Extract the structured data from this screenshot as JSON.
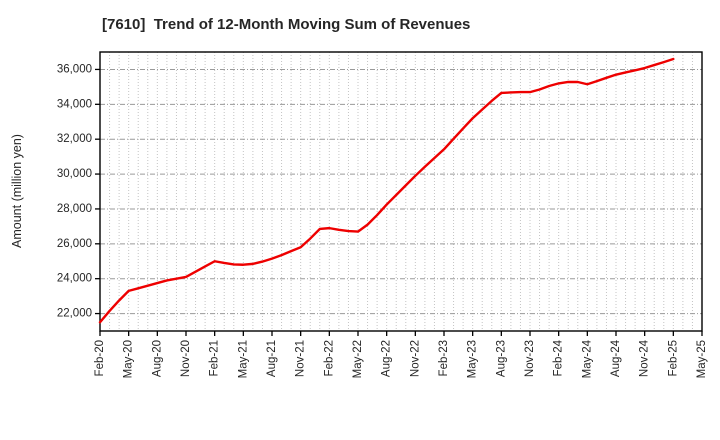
{
  "chart_data": {
    "type": "line",
    "title": "[7610]  Trend of 12-Month Moving Sum of Revenues",
    "ylabel": "Amount (million yen)",
    "xlabel": "",
    "legend": "none",
    "grid": {
      "vertical": "monthly-dotted",
      "horizontal": "major-dashdot"
    },
    "x_tick_labels": [
      "Feb-20",
      "May-20",
      "Aug-20",
      "Nov-20",
      "Feb-21",
      "May-21",
      "Aug-21",
      "Nov-21",
      "Feb-22",
      "May-22",
      "Aug-22",
      "Nov-22",
      "Feb-23",
      "May-23",
      "Aug-23",
      "Nov-23",
      "Feb-24",
      "May-24",
      "Aug-24",
      "Nov-24",
      "Feb-25",
      "May-25"
    ],
    "x_tick_step_months": 3,
    "x_total_months": 63,
    "y_ticks": [
      22000,
      24000,
      26000,
      28000,
      30000,
      32000,
      34000,
      36000
    ],
    "ylim": [
      21000,
      37000
    ],
    "series": [
      {
        "name": "12-Month Moving Sum of Revenues",
        "color": "#ee0000",
        "start_month_label": "Feb-20",
        "end_month_label": "Feb-25",
        "months": [
          "Feb-20",
          "Mar-20",
          "Apr-20",
          "May-20",
          "Jun-20",
          "Jul-20",
          "Aug-20",
          "Sep-20",
          "Oct-20",
          "Nov-20",
          "Dec-20",
          "Jan-21",
          "Feb-21",
          "Mar-21",
          "Apr-21",
          "May-21",
          "Jun-21",
          "Jul-21",
          "Aug-21",
          "Sep-21",
          "Oct-21",
          "Nov-21",
          "Dec-21",
          "Jan-22",
          "Feb-22",
          "Mar-22",
          "Apr-22",
          "May-22",
          "Jun-22",
          "Jul-22",
          "Aug-22",
          "Sep-22",
          "Oct-22",
          "Nov-22",
          "Dec-22",
          "Jan-23",
          "Feb-23",
          "Mar-23",
          "Apr-23",
          "May-23",
          "Jun-23",
          "Jul-23",
          "Aug-23",
          "Sep-23",
          "Oct-23",
          "Nov-23",
          "Dec-23",
          "Jan-24",
          "Feb-24",
          "Mar-24",
          "Apr-24",
          "May-24",
          "Jun-24",
          "Jul-24",
          "Aug-24",
          "Sep-24",
          "Oct-24",
          "Nov-24",
          "Dec-24",
          "Jan-25",
          "Feb-25"
        ],
        "values": [
          21500,
          22150,
          22750,
          23300,
          23450,
          23600,
          23750,
          23900,
          24000,
          24100,
          24400,
          24700,
          25000,
          24900,
          24820,
          24800,
          24850,
          24980,
          25150,
          25350,
          25580,
          25800,
          26300,
          26850,
          26900,
          26800,
          26730,
          26700,
          27100,
          27650,
          28250,
          28800,
          29350,
          29900,
          30420,
          30920,
          31420,
          32020,
          32620,
          33200,
          33700,
          34200,
          34650,
          34680,
          34700,
          34700,
          34850,
          35050,
          35200,
          35280,
          35280,
          35150,
          35330,
          35520,
          35700,
          35830,
          35950,
          36080,
          36250,
          36420,
          36600
        ]
      }
    ],
    "colors": {
      "line": "#ee0000",
      "axis_border": "#000000",
      "grid_vertical": "#c4c4c4",
      "grid_horizontal": "#9a9a9a",
      "text": "#262626"
    }
  }
}
